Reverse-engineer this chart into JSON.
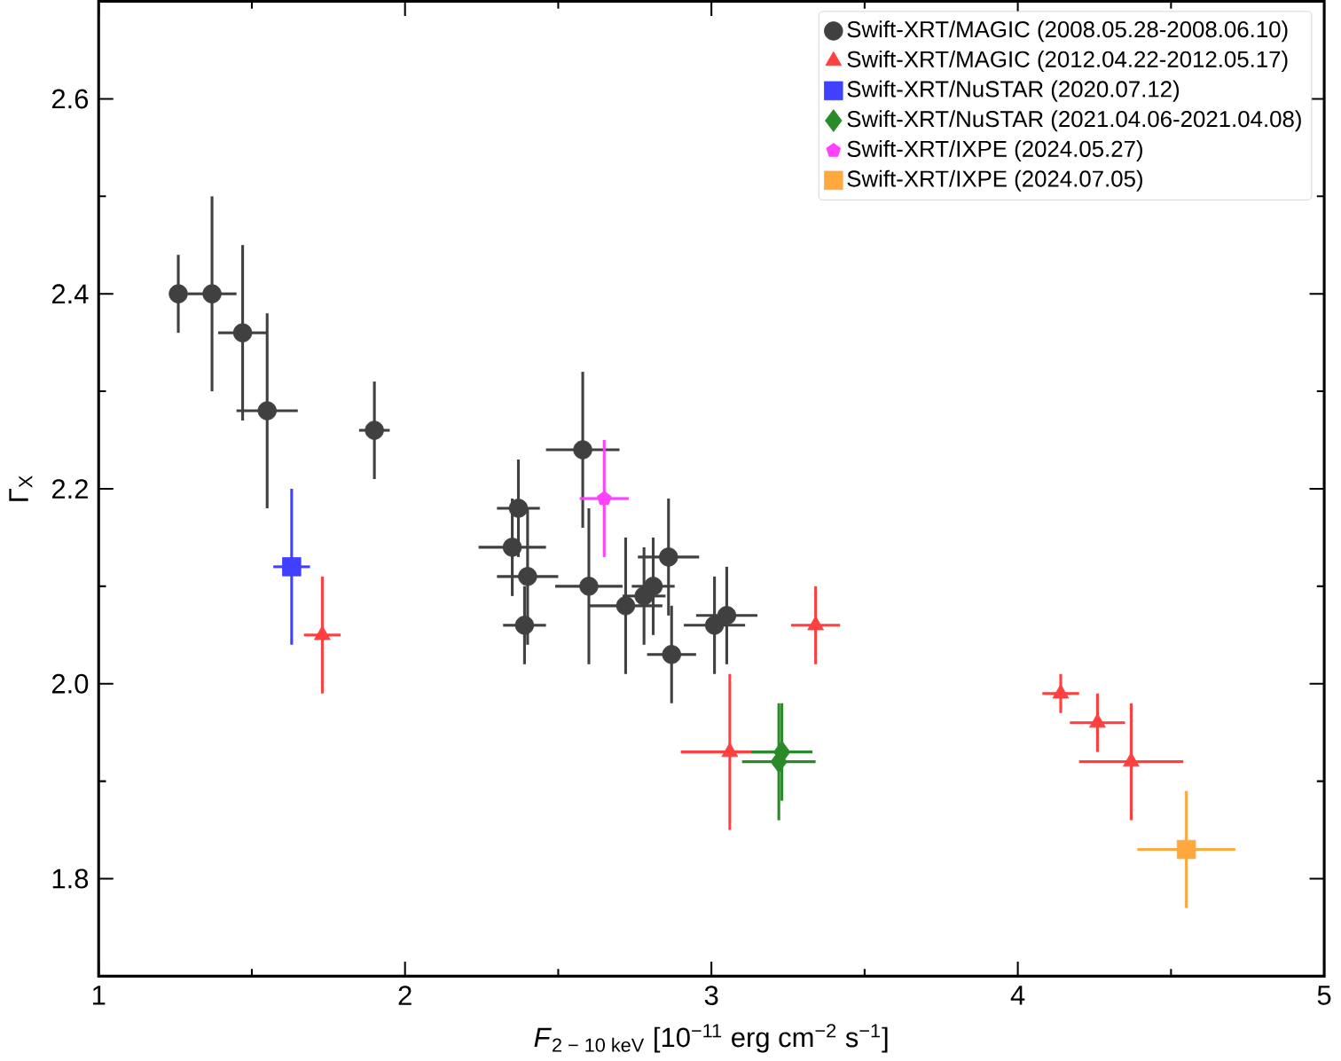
{
  "chart_data": {
    "type": "scatter",
    "xlabel": "*F*$_{2 − 10 keV}$ [10$^{−11}$ erg cm$^{−2}$ s$^{−1}$]",
    "ylabel": "Γ$_{X}$",
    "xlim": [
      1,
      5
    ],
    "ylim": [
      1.7,
      2.7
    ],
    "xticks": [
      1,
      2,
      3,
      4,
      5
    ],
    "yticks": [
      1.8,
      {
        "value": 2.0,
        "label": "2.0"
      },
      2.2,
      2.4,
      2.6
    ],
    "grid": false,
    "legend": "top right",
    "series": [
      {
        "name": "Swift-XRT/MAGIC (2008.05.28-2008.06.10)",
        "color": "#404040",
        "marker": "circle",
        "x": [
          1.26,
          1.37,
          1.47,
          1.55,
          1.9,
          2.37,
          2.35,
          2.4,
          2.39,
          2.58,
          2.6,
          2.72,
          2.78,
          2.81,
          2.86,
          2.87,
          3.01,
          3.05
        ],
        "values": [
          2.4,
          2.4,
          2.36,
          2.28,
          2.26,
          2.18,
          2.14,
          2.11,
          2.06,
          2.24,
          2.1,
          2.08,
          2.09,
          2.1,
          2.13,
          2.03,
          2.06,
          2.07
        ],
        "errors": [
          0.04,
          0.1,
          0.09,
          0.1,
          0.05,
          0.05,
          0.05,
          0.07,
          0.04,
          0.08,
          0.08,
          0.07,
          0.05,
          0.05,
          0.06,
          0.05,
          0.05,
          0.05
        ],
        "xerrors": [
          null,
          0.08,
          0.08,
          0.1,
          0.05,
          0.07,
          0.11,
          0.1,
          0.07,
          0.12,
          0.11,
          0.12,
          0.07,
          0.07,
          0.1,
          0.08,
          0.1,
          0.1
        ]
      },
      {
        "name": "Swift-XRT/MAGIC (2012.04.22-2012.05.17)",
        "color": "#ff4040",
        "marker": "triangle",
        "x": [
          1.73,
          3.06,
          3.34,
          4.14,
          4.26,
          4.37
        ],
        "values": [
          2.05,
          1.93,
          2.06,
          1.99,
          1.96,
          1.92
        ],
        "errors": [
          0.06,
          0.08,
          0.04,
          0.02,
          0.03,
          0.06
        ],
        "xerrors": [
          0.06,
          0.16,
          0.08,
          0.06,
          0.09,
          0.17
        ]
      },
      {
        "name": "Swift-XRT/NuSTAR (2020.07.12)",
        "color": "#4040ff",
        "marker": "square",
        "x": [
          1.63
        ],
        "values": [
          2.12
        ],
        "errors": [
          0.08
        ],
        "xerrors": [
          0.06
        ]
      },
      {
        "name": "Swift-XRT/NuSTAR (2021.04.06-2021.04.08)",
        "color": "#2a8a2a",
        "marker": "diamond",
        "x": [
          3.23,
          3.22
        ],
        "values": [
          1.93,
          1.92
        ],
        "errors": [
          0.05,
          0.06
        ],
        "xerrors": [
          0.1,
          0.12
        ]
      },
      {
        "name": "Swift-XRT/IXPE (2024.05.27)",
        "color": "#ff40ff",
        "marker": "star",
        "x": [
          2.65
        ],
        "values": [
          2.19
        ],
        "errors": [
          0.06
        ],
        "xerrors": [
          0.08
        ]
      },
      {
        "name": "Swift-XRT/IXPE (2024.07.05)",
        "color": "#ffa840",
        "marker": "square",
        "x": [
          4.55
        ],
        "values": [
          1.83
        ],
        "errors": [
          0.06
        ],
        "xerrors": [
          0.16
        ]
      }
    ]
  }
}
